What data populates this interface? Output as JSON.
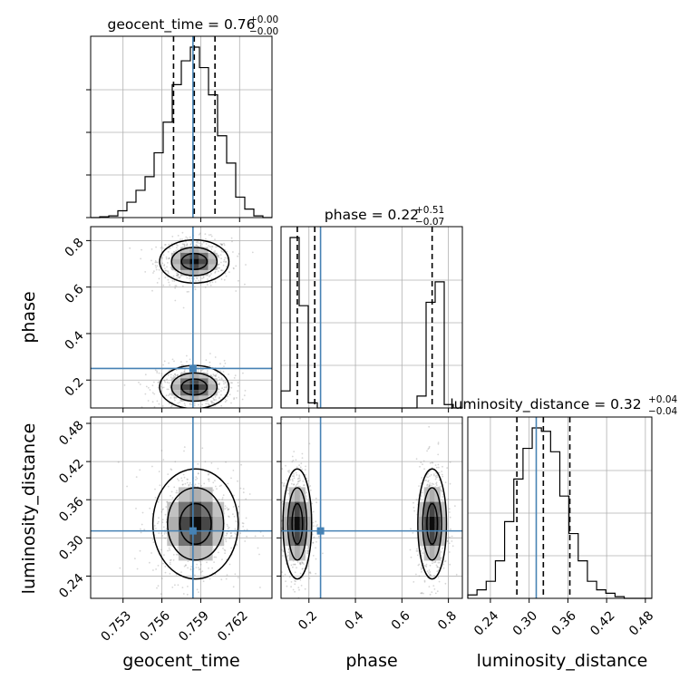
{
  "chart_data": {
    "type": "corner",
    "parameters": [
      {
        "name": "geocent_time",
        "title": "geocent_time = 0.76",
        "title_sup": "+0.00",
        "title_sub": "−0.00",
        "range": [
          0.7505,
          0.7645
        ],
        "ticks": [
          "0.753",
          "0.756",
          "0.759",
          "0.762"
        ],
        "tick_values": [
          0.753,
          0.756,
          0.759,
          0.762
        ],
        "truth": 0.7584,
        "quantiles": [
          0.7569,
          0.7585,
          0.7601
        ],
        "hist_edges": [
          0.7505,
          0.7512,
          0.7519,
          0.7526,
          0.7533,
          0.754,
          0.7547,
          0.7554,
          0.7561,
          0.7568,
          0.7575,
          0.7582,
          0.7589,
          0.7596,
          0.7603,
          0.761,
          0.7617,
          0.7624,
          0.7631,
          0.7638,
          0.7645
        ],
        "hist_counts": [
          0.0,
          0.005,
          0.01,
          0.04,
          0.09,
          0.16,
          0.24,
          0.38,
          0.56,
          0.78,
          0.92,
          1.0,
          0.88,
          0.72,
          0.48,
          0.32,
          0.12,
          0.05,
          0.01,
          0.0
        ]
      },
      {
        "name": "phase",
        "title": "phase = 0.22",
        "title_sup": "+0.51",
        "title_sub": "−0.07",
        "range": [
          0.08,
          0.86
        ],
        "ticks": [
          "0.2",
          "0.4",
          "0.6",
          "0.8"
        ],
        "tick_values": [
          0.2,
          0.4,
          0.6,
          0.8
        ],
        "y_ticks": [
          "0.2",
          "0.4",
          "0.6",
          "0.8"
        ],
        "truth": 0.25,
        "quantiles": [
          0.15,
          0.225,
          0.73
        ],
        "hist_edges": [
          0.08,
          0.119,
          0.158,
          0.197,
          0.236,
          0.275,
          0.314,
          0.353,
          0.392,
          0.431,
          0.47,
          0.509,
          0.548,
          0.587,
          0.626,
          0.665,
          0.704,
          0.743,
          0.782,
          0.821,
          0.86
        ],
        "hist_counts": [
          0.1,
          1.0,
          0.6,
          0.03,
          0.0,
          0.0,
          0.0,
          0.0,
          0.0,
          0.0,
          0.0,
          0.0,
          0.0,
          0.0,
          0.0,
          0.07,
          0.62,
          0.74,
          0.02,
          0.0
        ]
      },
      {
        "name": "luminosity_distance",
        "title": "luminosity_distance = 0.32",
        "title_sup": "+0.04",
        "title_sub": "−0.04",
        "range": [
          0.205,
          0.49
        ],
        "ticks": [
          "0.24",
          "0.30",
          "0.36",
          "0.42",
          "0.48"
        ],
        "tick_values": [
          0.24,
          0.3,
          0.36,
          0.42,
          0.48
        ],
        "y_ticks": [
          "0.24",
          "0.30",
          "0.36",
          "0.42",
          "0.48"
        ],
        "truth": 0.311,
        "quantiles": [
          0.281,
          0.322,
          0.363
        ],
        "hist_edges": [
          0.205,
          0.21925,
          0.2335,
          0.24775,
          0.262,
          0.27625,
          0.2905,
          0.30475,
          0.319,
          0.33325,
          0.3475,
          0.36175,
          0.376,
          0.39025,
          0.4045,
          0.41875,
          0.433,
          0.44725,
          0.4615,
          0.47575,
          0.49
        ],
        "hist_counts": [
          0.02,
          0.05,
          0.1,
          0.22,
          0.45,
          0.7,
          0.88,
          1.0,
          0.98,
          0.86,
          0.6,
          0.38,
          0.22,
          0.1,
          0.05,
          0.03,
          0.01,
          0.0,
          0.0,
          0.0
        ]
      }
    ],
    "panels_2d": [
      {
        "x": "geocent_time",
        "y": "phase",
        "modes": [
          {
            "cx": 0.7585,
            "cy": 0.71,
            "sx": 0.0013,
            "sy": 0.045
          },
          {
            "cx": 0.7585,
            "cy": 0.17,
            "sx": 0.0013,
            "sy": 0.045
          }
        ]
      },
      {
        "x": "geocent_time",
        "y": "luminosity_distance",
        "modes": [
          {
            "cx": 0.7586,
            "cy": 0.322,
            "sx": 0.0016,
            "sy": 0.042
          }
        ]
      },
      {
        "x": "phase",
        "y": "luminosity_distance",
        "modes": [
          {
            "cx": 0.15,
            "cy": 0.322,
            "sx": 0.03,
            "sy": 0.042
          },
          {
            "cx": 0.73,
            "cy": 0.322,
            "sx": 0.03,
            "sy": 0.042
          }
        ]
      }
    ],
    "contour_levels": [
      0.12,
      0.4,
      0.75
    ],
    "grid": true,
    "colors": {
      "truth": "#4682b4",
      "hist": "#000000",
      "quantile": "#000000",
      "grid": "#b0b0b0",
      "samples": "#8a8a8a"
    }
  }
}
